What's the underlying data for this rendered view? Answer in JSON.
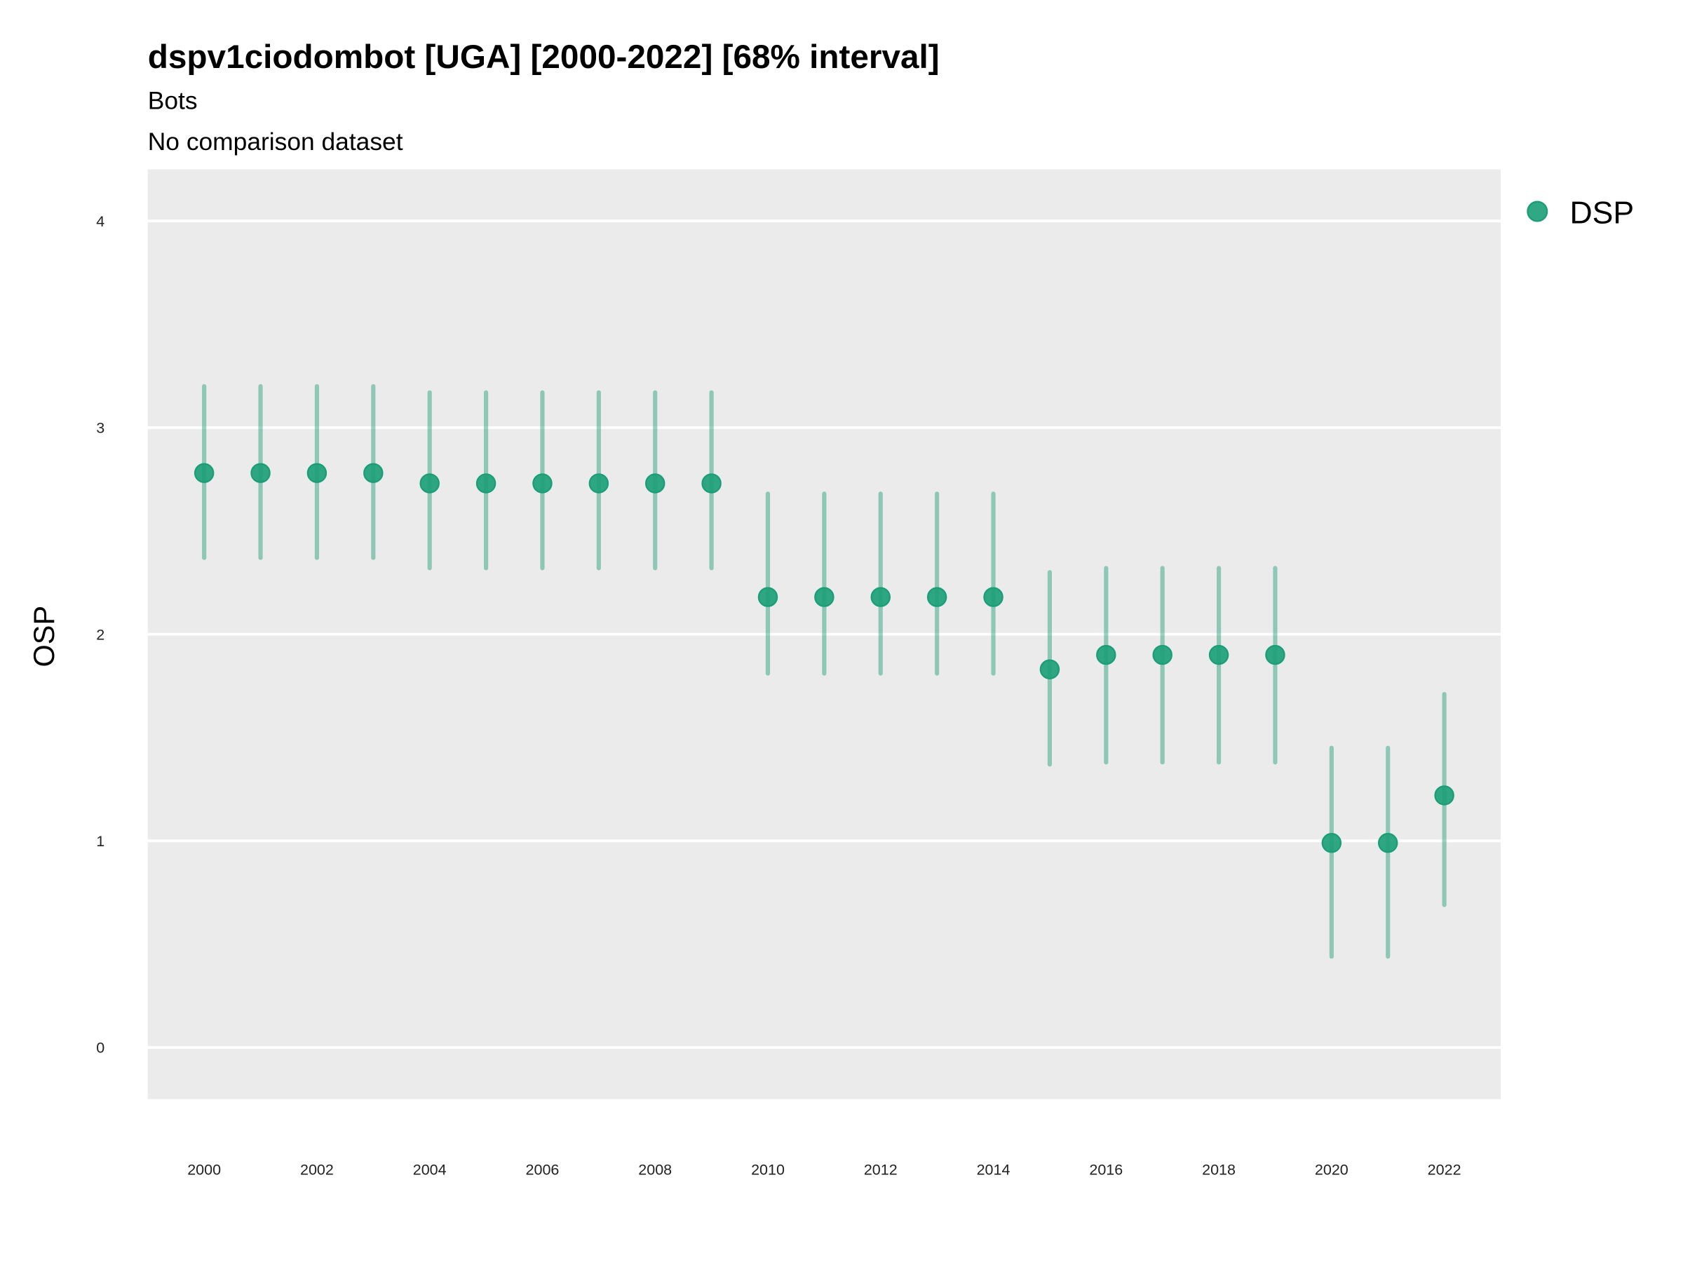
{
  "chart_data": {
    "type": "scatter",
    "title": "dspv1ciodombot [UGA] [2000-2022] [68% interval]",
    "subtitle": "Bots",
    "caption_line": "No comparison dataset",
    "xlabel": "",
    "ylabel": "OSP",
    "ylim": [
      -0.25,
      4.25
    ],
    "xlim": [
      1999,
      2023
    ],
    "grid": true,
    "legend_position": "right",
    "yticks": [
      "0",
      "1",
      "2",
      "3",
      "4"
    ],
    "xticks": [
      "2000",
      "2002",
      "2004",
      "2006",
      "2008",
      "2010",
      "2012",
      "2014",
      "2016",
      "2018",
      "2020",
      "2022"
    ],
    "series": [
      {
        "name": "DSP",
        "color": "#1b9e77",
        "x": [
          2000,
          2001,
          2002,
          2003,
          2004,
          2005,
          2006,
          2007,
          2008,
          2009,
          2010,
          2011,
          2012,
          2013,
          2014,
          2015,
          2016,
          2017,
          2018,
          2019,
          2020,
          2021,
          2022
        ],
        "y": [
          2.78,
          2.78,
          2.78,
          2.78,
          2.73,
          2.73,
          2.73,
          2.73,
          2.73,
          2.73,
          2.18,
          2.18,
          2.18,
          2.18,
          2.18,
          1.83,
          1.9,
          1.9,
          1.9,
          1.9,
          0.99,
          0.99,
          1.22
        ],
        "lower": [
          2.37,
          2.37,
          2.37,
          2.37,
          2.32,
          2.32,
          2.32,
          2.32,
          2.32,
          2.32,
          1.81,
          1.81,
          1.81,
          1.81,
          1.81,
          1.37,
          1.38,
          1.38,
          1.38,
          1.38,
          0.44,
          0.44,
          0.69
        ],
        "upper": [
          3.2,
          3.2,
          3.2,
          3.2,
          3.17,
          3.17,
          3.17,
          3.17,
          3.17,
          3.17,
          2.68,
          2.68,
          2.68,
          2.68,
          2.68,
          2.3,
          2.32,
          2.32,
          2.32,
          2.32,
          1.45,
          1.45,
          1.71
        ]
      }
    ]
  }
}
